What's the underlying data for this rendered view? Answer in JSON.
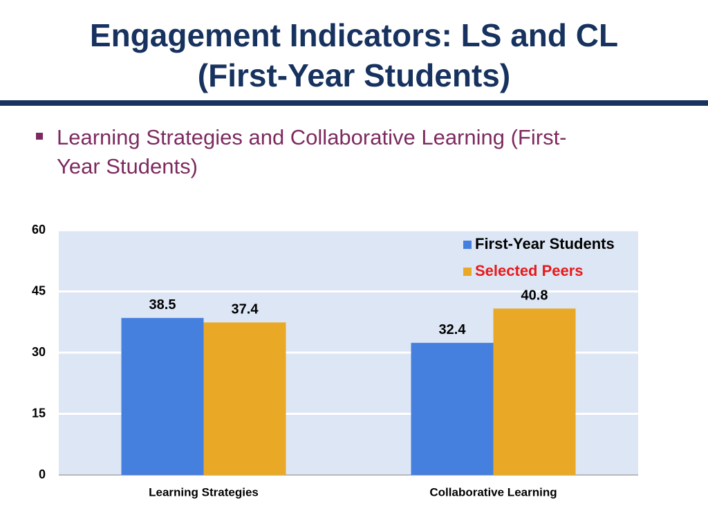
{
  "slide": {
    "title": [
      "Engagement Indicators: LS and CL",
      "(First-Year Students)"
    ],
    "bullet": "Learning Strategies and Collaborative Learning (First-Year Students)"
  },
  "chart_data": {
    "type": "bar",
    "categories": [
      "Learning Strategies",
      "Collaborative Learning"
    ],
    "series": [
      {
        "name": "First-Year Students",
        "color": "#4680df",
        "label_color": "#000000",
        "values": [
          38.5,
          32.4
        ]
      },
      {
        "name": "Selected Peers",
        "color": "#e9a927",
        "label_color": "#e8191b",
        "values": [
          37.4,
          40.8
        ]
      }
    ],
    "ylim": [
      0,
      60
    ],
    "yticks": [
      0,
      15,
      30,
      45,
      60
    ],
    "grid": true,
    "legend": "upper right"
  }
}
